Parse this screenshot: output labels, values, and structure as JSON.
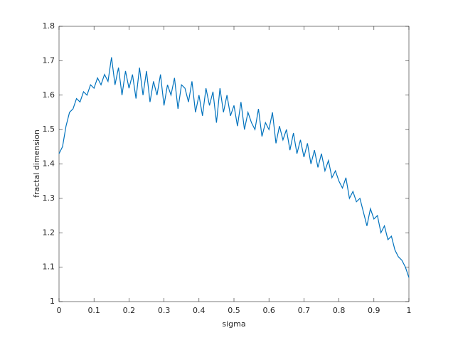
{
  "chart_data": {
    "type": "line",
    "xlabel": "sigma",
    "ylabel": "fractal dimension",
    "x": [
      0,
      0.01,
      0.02,
      0.03,
      0.04,
      0.05,
      0.06,
      0.07,
      0.08,
      0.09,
      0.1,
      0.11,
      0.12,
      0.13,
      0.14,
      0.15,
      0.16,
      0.17,
      0.18,
      0.19,
      0.2,
      0.21,
      0.22,
      0.23,
      0.24,
      0.25,
      0.26,
      0.27,
      0.28,
      0.29,
      0.3,
      0.31,
      0.32,
      0.33,
      0.34,
      0.35,
      0.36,
      0.37,
      0.38,
      0.39,
      0.4,
      0.41,
      0.42,
      0.43,
      0.44,
      0.45,
      0.46,
      0.47,
      0.48,
      0.49,
      0.5,
      0.51,
      0.52,
      0.53,
      0.54,
      0.55,
      0.56,
      0.57,
      0.58,
      0.59,
      0.6,
      0.61,
      0.62,
      0.63,
      0.64,
      0.65,
      0.66,
      0.67,
      0.68,
      0.69,
      0.7,
      0.71,
      0.72,
      0.73,
      0.74,
      0.75,
      0.76,
      0.77,
      0.78,
      0.79,
      0.8,
      0.81,
      0.82,
      0.83,
      0.84,
      0.85,
      0.86,
      0.87,
      0.88,
      0.89,
      0.9,
      0.91,
      0.92,
      0.93,
      0.94,
      0.95,
      0.96,
      0.97,
      0.98,
      0.99,
      1
    ],
    "series": [
      {
        "color": "#0072bd",
        "values": [
          1.43,
          1.45,
          1.51,
          1.55,
          1.56,
          1.59,
          1.58,
          1.61,
          1.6,
          1.63,
          1.62,
          1.65,
          1.63,
          1.66,
          1.64,
          1.71,
          1.63,
          1.68,
          1.6,
          1.67,
          1.62,
          1.66,
          1.59,
          1.68,
          1.6,
          1.67,
          1.58,
          1.64,
          1.6,
          1.66,
          1.57,
          1.63,
          1.6,
          1.65,
          1.56,
          1.63,
          1.62,
          1.58,
          1.64,
          1.55,
          1.6,
          1.54,
          1.62,
          1.57,
          1.61,
          1.52,
          1.62,
          1.55,
          1.6,
          1.54,
          1.57,
          1.51,
          1.58,
          1.5,
          1.55,
          1.52,
          1.5,
          1.56,
          1.48,
          1.52,
          1.5,
          1.55,
          1.46,
          1.51,
          1.47,
          1.5,
          1.44,
          1.49,
          1.43,
          1.47,
          1.42,
          1.46,
          1.4,
          1.44,
          1.39,
          1.43,
          1.38,
          1.41,
          1.36,
          1.38,
          1.35,
          1.33,
          1.36,
          1.3,
          1.32,
          1.29,
          1.3,
          1.26,
          1.22,
          1.27,
          1.24,
          1.25,
          1.2,
          1.22,
          1.18,
          1.19,
          1.15,
          1.13,
          1.12,
          1.1,
          1.07
        ]
      }
    ],
    "xlim": [
      0,
      1
    ],
    "xticks": [
      0,
      0.1,
      0.2,
      0.3,
      0.4,
      0.5,
      0.6,
      0.7,
      0.8,
      0.9,
      1
    ],
    "ylim": [
      1,
      1.8
    ],
    "yticks": [
      1,
      1.1,
      1.2,
      1.3,
      1.4,
      1.5,
      1.6,
      1.7,
      1.8
    ],
    "grid": false
  }
}
